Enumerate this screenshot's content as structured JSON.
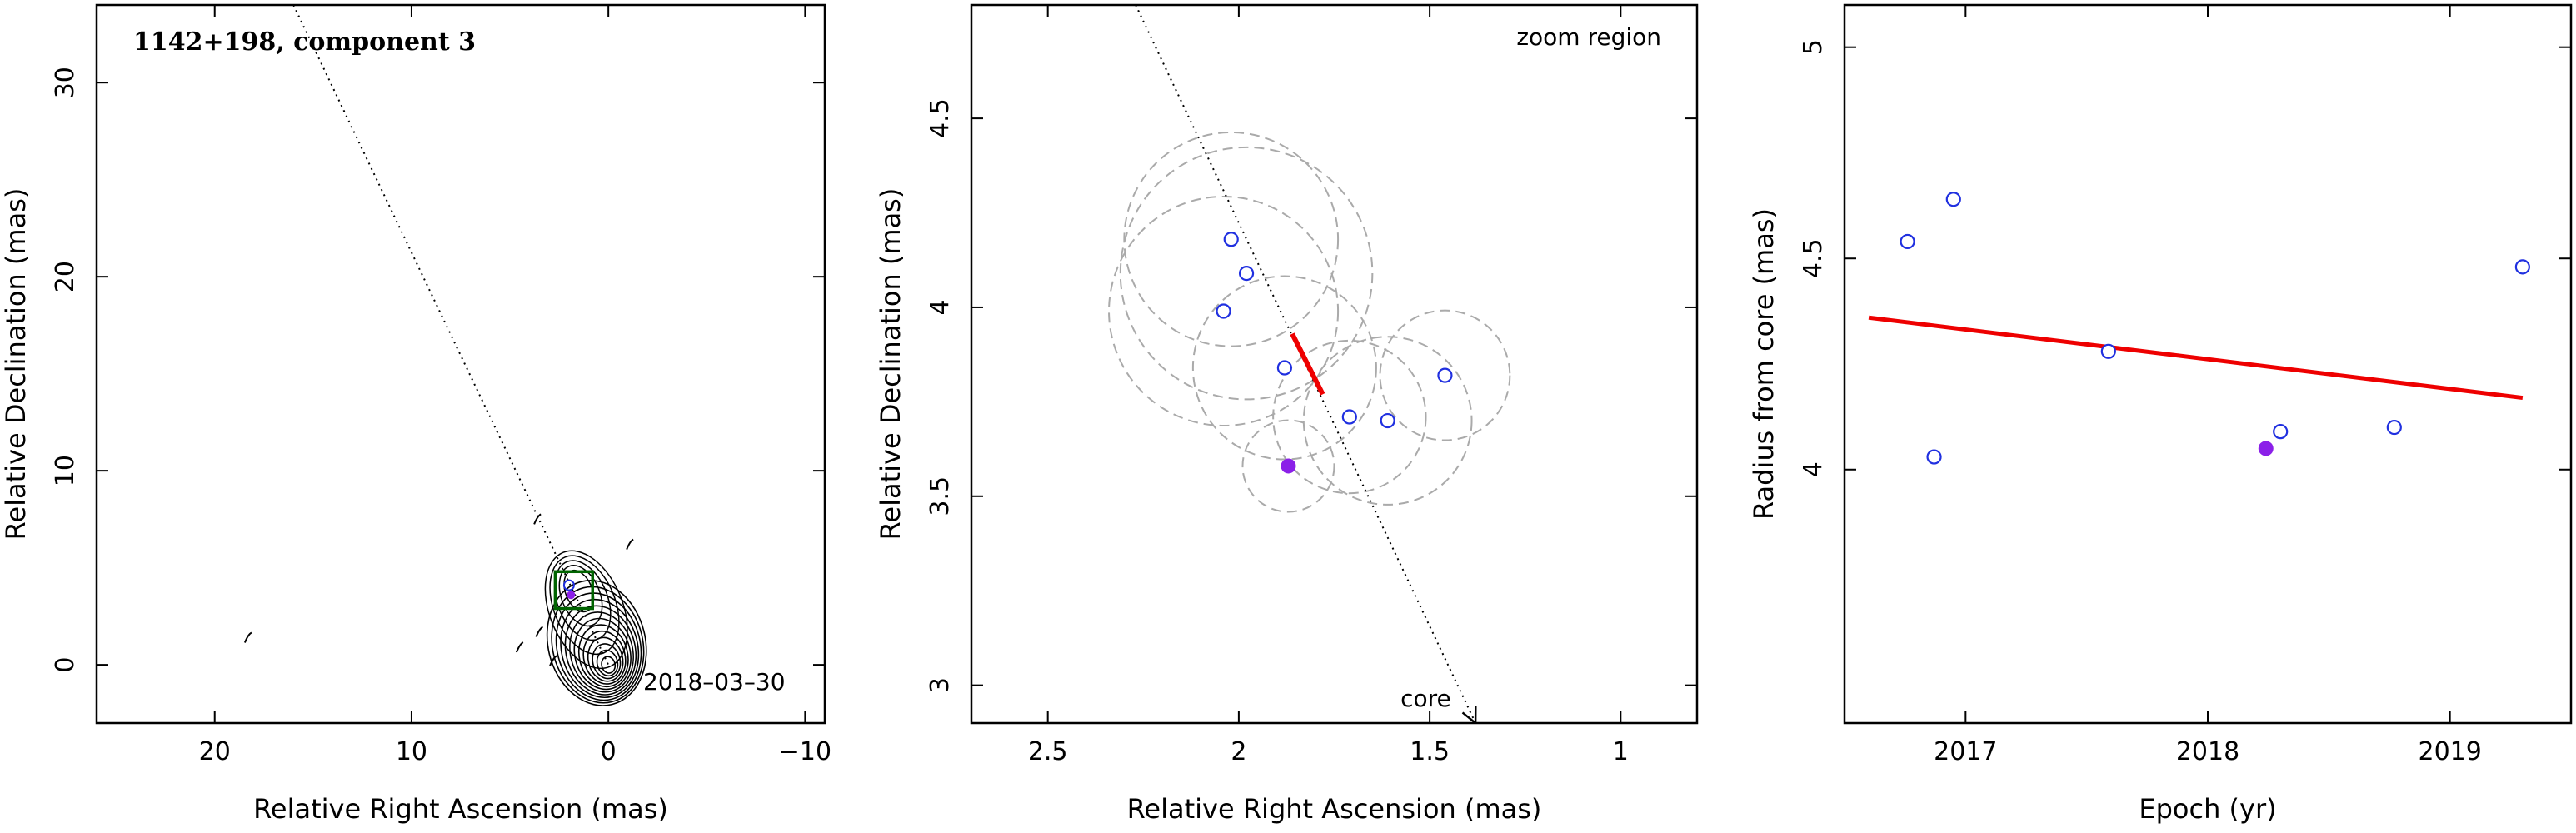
{
  "chart_data": [
    {
      "type": "contour",
      "panel": "left",
      "title": "1142+198, component 3",
      "date_label": "2018–03–30",
      "xlabel": "Relative Right Ascension (mas)",
      "ylabel": "Relative Declination (mas)",
      "xlim": [
        26,
        -11
      ],
      "ylim": [
        -3,
        34
      ],
      "xticks": [
        20,
        10,
        0,
        -10
      ],
      "xtick_labels": [
        "20",
        "10",
        "0",
        "−10"
      ],
      "yticks": [
        0,
        10,
        20,
        30
      ],
      "ytick_labels": [
        "0",
        "10",
        "20",
        "30"
      ],
      "jet_line": {
        "x": [
          16,
          0
        ],
        "y": [
          34,
          0
        ],
        "style": "dotted"
      },
      "zoom_box": {
        "x": [
          2.7,
          0.8
        ],
        "y": [
          2.9,
          4.8
        ],
        "color": "#006400"
      },
      "core_position": {
        "x": 0,
        "y": 0
      },
      "component_position": {
        "x": 1.9,
        "y": 3.6
      },
      "minor_contours": [
        {
          "x": 3.6,
          "y": 7.5
        },
        {
          "x": 18.3,
          "y": 1.4
        },
        {
          "x": -1.1,
          "y": 6.2
        },
        {
          "x": 3.5,
          "y": 1.7
        },
        {
          "x": 4.5,
          "y": 0.9
        },
        {
          "x": 2.8,
          "y": 0.2
        }
      ]
    },
    {
      "type": "scatter",
      "panel": "middle",
      "label": "zoom region",
      "xlabel": "Relative Right Ascension (mas)",
      "ylabel": "Relative Declination (mas)",
      "xlim": [
        2.7,
        0.8
      ],
      "ylim": [
        2.9,
        4.8
      ],
      "xticks": [
        2.5,
        2,
        1.5,
        1
      ],
      "xtick_labels": [
        "2.5",
        "2",
        "1.5",
        "1"
      ],
      "yticks": [
        3,
        3.5,
        4,
        4.5
      ],
      "ytick_labels": [
        "3",
        "3.5",
        "4",
        "4.5"
      ],
      "core_arrow": {
        "x": [
          2.27,
          1.38
        ],
        "y": [
          4.8,
          2.9
        ],
        "label": "core"
      },
      "points": [
        {
          "x": 2.02,
          "y": 4.18,
          "r": 0.28
        },
        {
          "x": 1.98,
          "y": 4.09,
          "r": 0.33
        },
        {
          "x": 2.04,
          "y": 3.99,
          "r": 0.3
        },
        {
          "x": 1.88,
          "y": 3.84,
          "r": 0.24
        },
        {
          "x": 1.71,
          "y": 3.71,
          "r": 0.2
        },
        {
          "x": 1.61,
          "y": 3.7,
          "r": 0.22
        },
        {
          "x": 1.46,
          "y": 3.82,
          "r": 0.17
        },
        {
          "x": 1.87,
          "y": 3.58,
          "r": 0.12,
          "selected": true
        }
      ],
      "motion_vector": {
        "x": [
          1.86,
          1.78
        ],
        "y": [
          3.93,
          3.77
        ],
        "color": "#ee0000"
      }
    },
    {
      "type": "scatter",
      "panel": "right",
      "xlabel": "Epoch (yr)",
      "ylabel": "Radius from core (mas)",
      "xlim": [
        2016.5,
        2019.5
      ],
      "ylim": [
        3.4,
        5.1
      ],
      "xticks": [
        2017,
        2018,
        2019
      ],
      "xtick_labels": [
        "2017",
        "2018",
        "2019"
      ],
      "yticks": [
        4,
        4.5,
        5
      ],
      "ytick_labels": [
        "4",
        "4.5",
        "5"
      ],
      "points": [
        {
          "x": 2016.76,
          "y": 4.54
        },
        {
          "x": 2016.87,
          "y": 4.03
        },
        {
          "x": 2016.95,
          "y": 4.64
        },
        {
          "x": 2017.59,
          "y": 4.28
        },
        {
          "x": 2018.24,
          "y": 4.05,
          "selected": true
        },
        {
          "x": 2018.3,
          "y": 4.09
        },
        {
          "x": 2018.77,
          "y": 4.1
        },
        {
          "x": 2019.3,
          "y": 4.48
        }
      ],
      "fit_line": {
        "x": [
          2016.6,
          2019.3
        ],
        "y": [
          4.36,
          4.17
        ],
        "color": "#ee0000"
      }
    }
  ]
}
